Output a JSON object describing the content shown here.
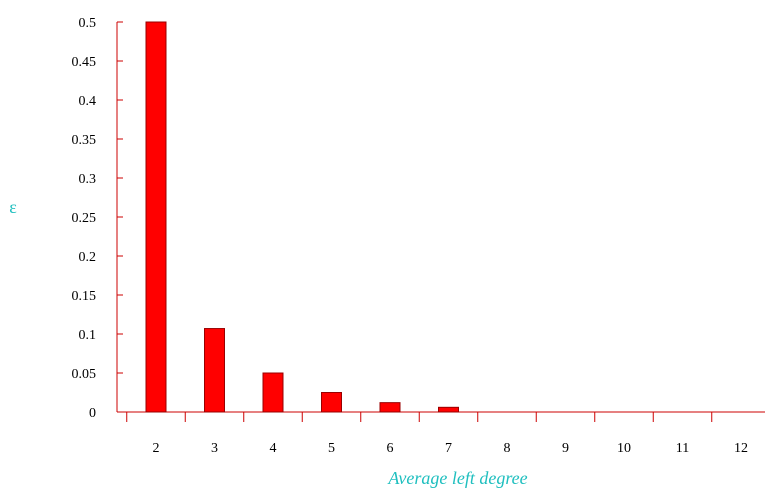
{
  "chart_data": {
    "type": "bar",
    "xlabel": "Average left degree",
    "ylabel": "ε",
    "categories": [
      "2",
      "3",
      "4",
      "5",
      "6",
      "7",
      "8",
      "9",
      "10",
      "11",
      "12"
    ],
    "values": [
      0.5,
      0.107,
      0.05,
      0.025,
      0.012,
      0.006,
      0,
      0,
      0,
      0,
      0
    ],
    "ylim": [
      0,
      0.5
    ],
    "yticks": [
      "0",
      "0.05",
      "0.1",
      "0.15",
      "0.2",
      "0.25",
      "0.3",
      "0.35",
      "0.4",
      "0.45",
      "0.5"
    ],
    "grid": false,
    "colors": {
      "bar_fill": "#ff0000",
      "bar_stroke": "#990000",
      "axis": "#cc0000",
      "label": "#1fbfbf"
    }
  }
}
